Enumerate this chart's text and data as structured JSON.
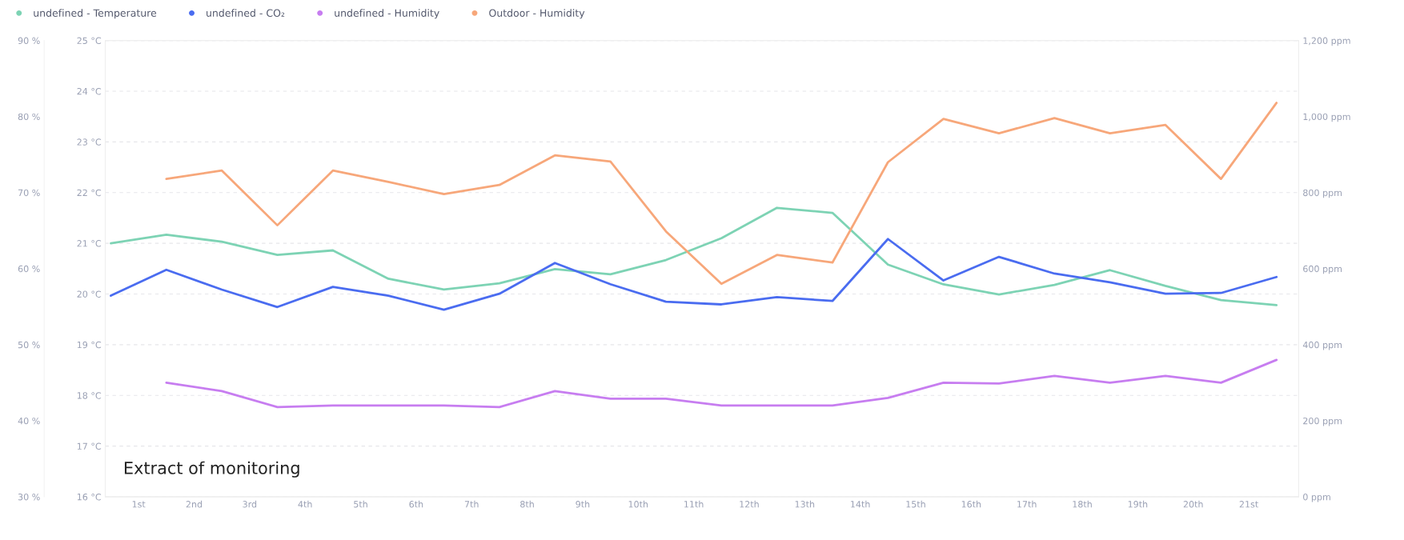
{
  "chart_data": {
    "type": "line",
    "x": [
      0.5,
      1.5,
      2.5,
      3.5,
      4.5,
      5.5,
      6.5,
      7.5,
      8.5,
      9.5,
      10.5,
      11.5,
      12.5,
      13.5,
      14.5,
      15.5,
      16.5,
      17.5,
      18.5,
      19.5,
      20.5,
      21.5
    ],
    "xlim": [
      0.4,
      21.9
    ],
    "xticks": [
      {
        "value": 1,
        "label": "1st"
      },
      {
        "value": 2,
        "label": "2nd"
      },
      {
        "value": 3,
        "label": "3rd"
      },
      {
        "value": 4,
        "label": "4th"
      },
      {
        "value": 5,
        "label": "5th"
      },
      {
        "value": 6,
        "label": "6th"
      },
      {
        "value": 7,
        "label": "7th"
      },
      {
        "value": 8,
        "label": "8th"
      },
      {
        "value": 9,
        "label": "9th"
      },
      {
        "value": 10,
        "label": "10th"
      },
      {
        "value": 11,
        "label": "11th"
      },
      {
        "value": 12,
        "label": "12th"
      },
      {
        "value": 13,
        "label": "13th"
      },
      {
        "value": 14,
        "label": "14th"
      },
      {
        "value": 15,
        "label": "15th"
      },
      {
        "value": 16,
        "label": "16th"
      },
      {
        "value": 17,
        "label": "17th"
      },
      {
        "value": 18,
        "label": "18th"
      },
      {
        "value": 19,
        "label": "19th"
      },
      {
        "value": 20,
        "label": "20th"
      },
      {
        "value": 21,
        "label": "21st"
      }
    ],
    "ylim": [
      16,
      25
    ],
    "yticks": [
      {
        "value": 16,
        "label": "16 °C"
      },
      {
        "value": 17,
        "label": "17 °C"
      },
      {
        "value": 18,
        "label": "18 °C"
      },
      {
        "value": 19,
        "label": "19 °C"
      },
      {
        "value": 20,
        "label": "20 °C"
      },
      {
        "value": 21,
        "label": "21 °C"
      },
      {
        "value": 22,
        "label": "22 °C"
      },
      {
        "value": 23,
        "label": "23 °C"
      },
      {
        "value": 24,
        "label": "24 °C"
      },
      {
        "value": 25,
        "label": "25 °C"
      }
    ],
    "y2lim": [
      0,
      1200
    ],
    "y2ticks": [
      {
        "value": 0,
        "label": "0 ppm"
      },
      {
        "value": 200,
        "label": "200 ppm"
      },
      {
        "value": 400,
        "label": "400 ppm"
      },
      {
        "value": 600,
        "label": "600 ppm"
      },
      {
        "value": 800,
        "label": "800 ppm"
      },
      {
        "value": 1000,
        "label": "1,000 ppm"
      },
      {
        "value": 1200,
        "label": "1,200 ppm"
      }
    ],
    "y3lim": [
      30,
      90
    ],
    "y3ticks": [
      {
        "value": 30,
        "label": "30 %"
      },
      {
        "value": 40,
        "label": "40 %"
      },
      {
        "value": 50,
        "label": "50 %"
      },
      {
        "value": 60,
        "label": "60 %"
      },
      {
        "value": 70,
        "label": "70 %"
      },
      {
        "value": 80,
        "label": "80 %"
      },
      {
        "value": 90,
        "label": "90 %"
      }
    ],
    "grid": "y",
    "legend": "top left",
    "marker": "none",
    "line_style": "solid",
    "annotations": [
      "Extract of monitoring"
    ],
    "series": [
      {
        "name": "undefined - Temperature",
        "color": "#7dd3b4",
        "values": [
          21.0,
          21.17,
          21.03,
          20.77,
          20.86,
          20.3,
          20.09,
          20.21,
          20.49,
          20.39,
          20.67,
          21.1,
          21.7,
          21.6,
          20.58,
          20.19,
          19.99,
          20.18,
          20.47,
          20.16,
          19.88,
          19.78
        ]
      },
      {
        "name": "undefined - CO₂",
        "color": "#4a6cf0",
        "axis": "y2",
        "values": [
          529,
          597,
          545,
          499,
          552,
          529,
          492,
          534,
          615,
          559,
          513,
          506,
          525,
          515,
          678,
          569,
          631,
          587,
          564,
          534,
          536,
          578
        ]
      },
      {
        "name": "undefined - Humidity",
        "color": "#c77df0",
        "axis": "y3",
        "values": [
          null,
          45.0,
          43.9,
          41.8,
          42.0,
          42.0,
          42.0,
          41.8,
          43.9,
          42.9,
          42.9,
          42.0,
          42.0,
          42.0,
          43.0,
          45.0,
          44.9,
          45.9,
          45.0,
          45.9,
          45.0,
          48.0
        ]
      },
      {
        "name": "Outdoor - Humidity",
        "color": "#f7a77a",
        "axis": "y3",
        "values": [
          null,
          71.8,
          72.9,
          65.7,
          72.9,
          71.4,
          69.8,
          71.0,
          74.9,
          74.1,
          64.9,
          58.0,
          61.8,
          60.8,
          74.0,
          79.7,
          77.8,
          79.8,
          77.8,
          78.9,
          71.8,
          81.8
        ]
      }
    ]
  }
}
